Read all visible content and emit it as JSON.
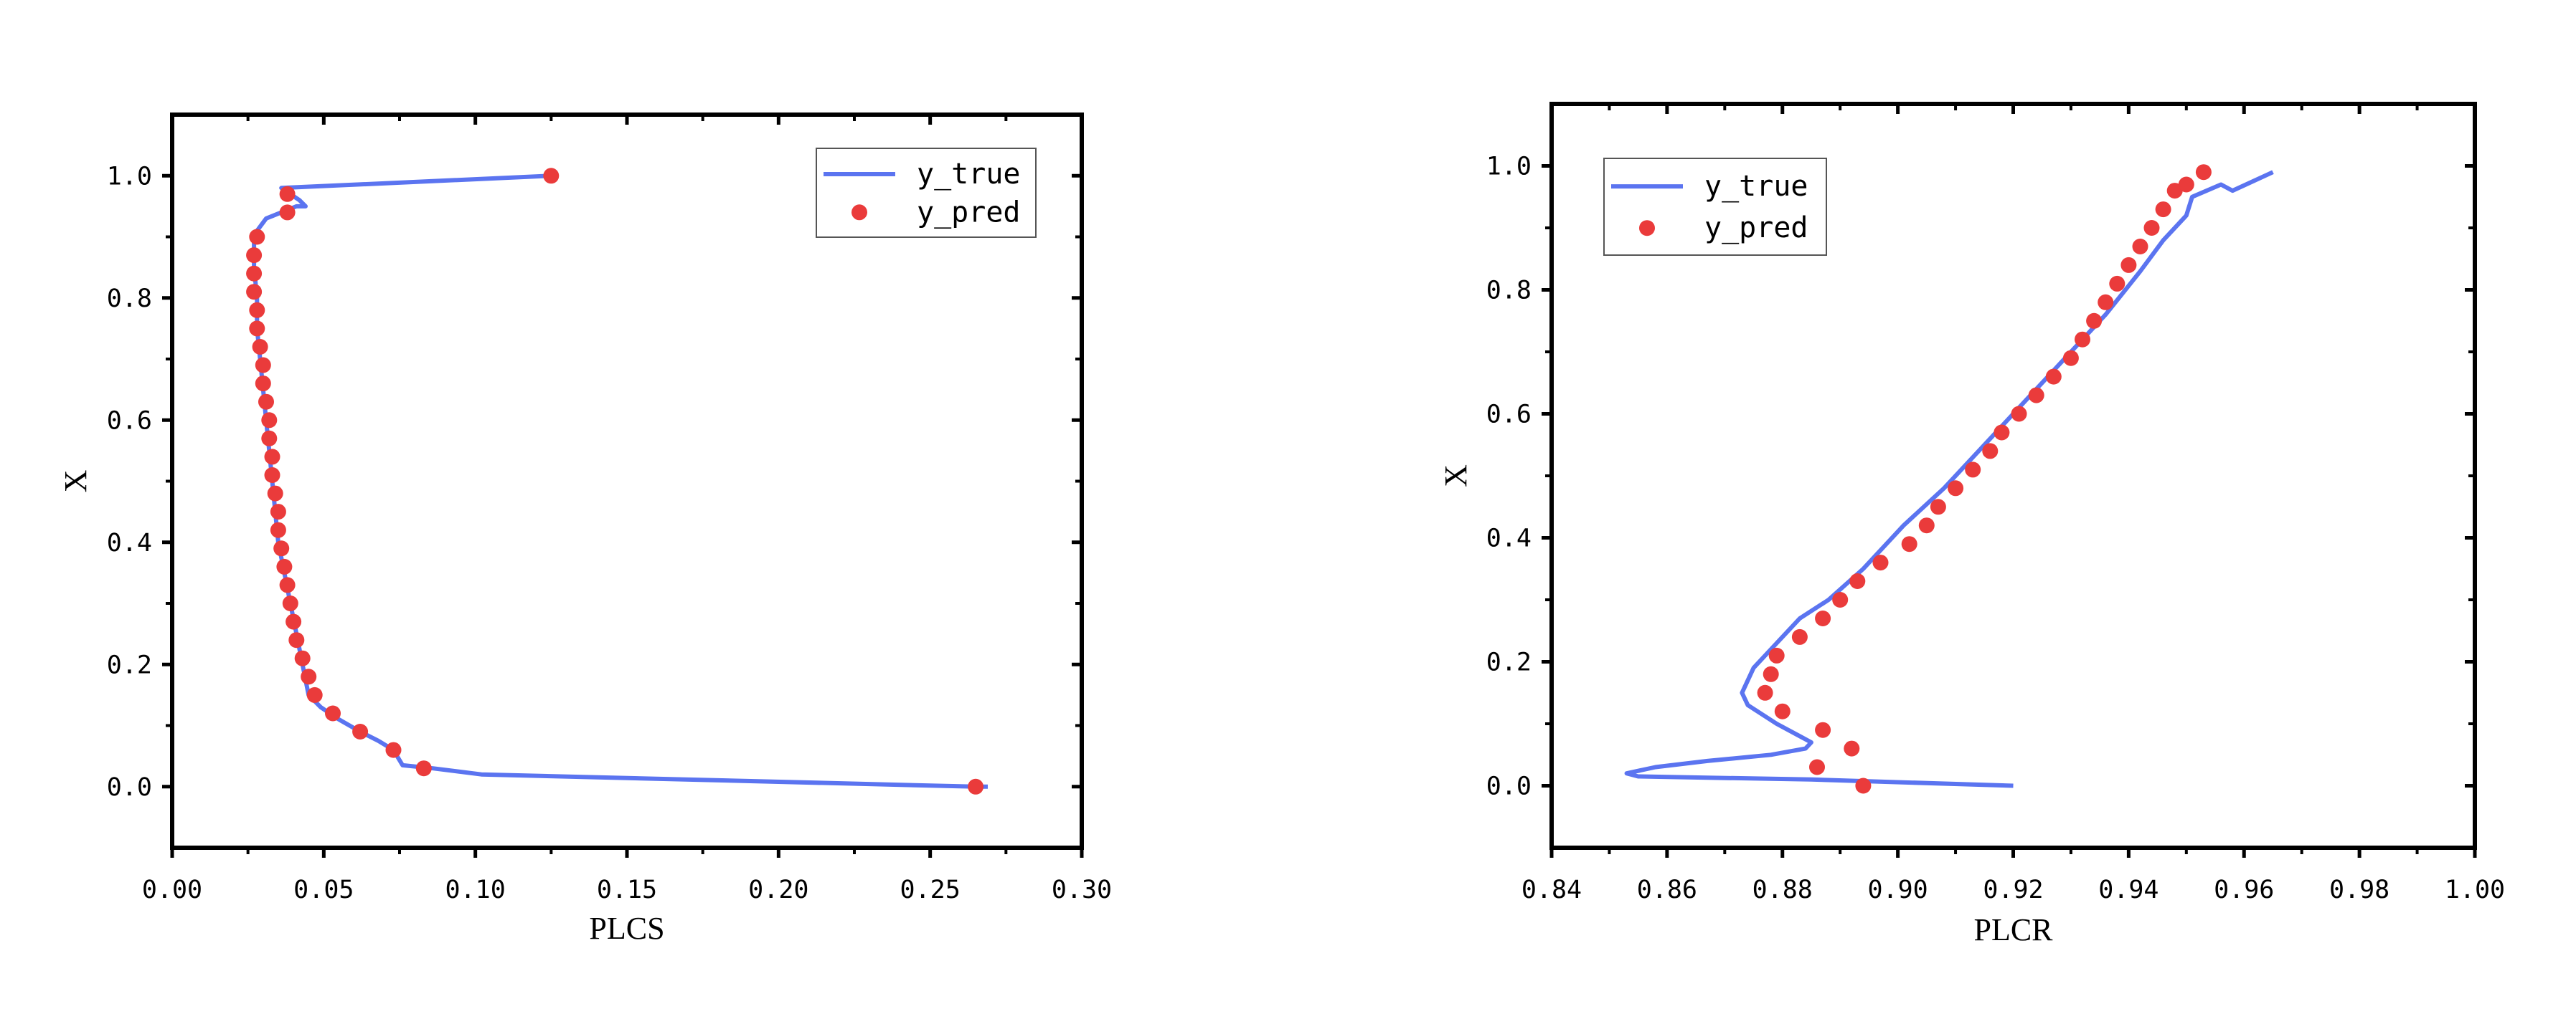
{
  "chart_data": [
    {
      "type": "line",
      "xlabel": "PLCS",
      "ylabel": "X",
      "xlim": [
        0.0,
        0.3
      ],
      "ylim": [
        -0.1,
        1.1
      ],
      "xticks": [
        0.0,
        0.05,
        0.1,
        0.15,
        0.2,
        0.25,
        0.3
      ],
      "xtick_labels": [
        "0.00",
        "0.05",
        "0.10",
        "0.15",
        "0.20",
        "0.25",
        "0.30"
      ],
      "yticks": [
        0.0,
        0.2,
        0.4,
        0.6,
        0.8,
        1.0
      ],
      "ytick_labels": [
        "0.0",
        "0.2",
        "0.4",
        "0.6",
        "0.8",
        "1.0"
      ],
      "legend": {
        "position": "top-right",
        "entries": [
          "y_true",
          "y_pred"
        ]
      },
      "grid": false,
      "colors": {
        "y_true": "#5b74f0",
        "y_pred": "#ea3b3b"
      },
      "series": [
        {
          "name": "y_true",
          "kind": "line",
          "x": [
            0.269,
            0.265,
            0.102,
            0.086,
            0.076,
            0.073,
            0.068,
            0.062,
            0.055,
            0.049,
            0.045,
            0.043,
            0.041,
            0.039,
            0.037,
            0.035,
            0.034,
            0.033,
            0.032,
            0.031,
            0.03,
            0.029,
            0.028,
            0.028,
            0.027,
            0.027,
            0.028,
            0.031,
            0.041,
            0.044,
            0.042,
            0.036,
            0.125
          ],
          "y": [
            0.0,
            0.0,
            0.02,
            0.03,
            0.035,
            0.06,
            0.075,
            0.09,
            0.11,
            0.13,
            0.15,
            0.2,
            0.25,
            0.3,
            0.35,
            0.4,
            0.45,
            0.5,
            0.55,
            0.6,
            0.65,
            0.7,
            0.75,
            0.8,
            0.85,
            0.89,
            0.91,
            0.93,
            0.95,
            0.95,
            0.96,
            0.98,
            1.0
          ]
        },
        {
          "name": "y_pred",
          "kind": "scatter",
          "x": [
            0.265,
            0.083,
            0.073,
            0.062,
            0.053,
            0.047,
            0.045,
            0.043,
            0.041,
            0.04,
            0.039,
            0.038,
            0.037,
            0.036,
            0.035,
            0.035,
            0.034,
            0.033,
            0.033,
            0.032,
            0.032,
            0.031,
            0.03,
            0.03,
            0.029,
            0.028,
            0.028,
            0.027,
            0.027,
            0.027,
            0.028,
            0.038,
            0.038,
            0.125
          ],
          "y": [
            0.0,
            0.03,
            0.06,
            0.09,
            0.12,
            0.15,
            0.18,
            0.21,
            0.24,
            0.27,
            0.3,
            0.33,
            0.36,
            0.39,
            0.42,
            0.45,
            0.48,
            0.51,
            0.54,
            0.57,
            0.6,
            0.63,
            0.66,
            0.69,
            0.72,
            0.75,
            0.78,
            0.81,
            0.84,
            0.87,
            0.9,
            0.94,
            0.97,
            1.0
          ]
        }
      ]
    },
    {
      "type": "line",
      "xlabel": "PLCR",
      "ylabel": "X",
      "xlim": [
        0.84,
        1.0
      ],
      "ylim": [
        -0.1,
        1.1
      ],
      "xticks": [
        0.84,
        0.86,
        0.88,
        0.9,
        0.92,
        0.94,
        0.96,
        0.98,
        1.0
      ],
      "xtick_labels": [
        "0.84",
        "0.86",
        "0.88",
        "0.90",
        "0.92",
        "0.94",
        "0.96",
        "0.98",
        "1.00"
      ],
      "yticks": [
        0.0,
        0.2,
        0.4,
        0.6,
        0.8,
        1.0
      ],
      "ytick_labels": [
        "0.0",
        "0.2",
        "0.4",
        "0.6",
        "0.8",
        "1.0"
      ],
      "legend": {
        "position": "top-left",
        "entries": [
          "y_true",
          "y_pred"
        ]
      },
      "grid": false,
      "colors": {
        "y_true": "#5b74f0",
        "y_pred": "#ea3b3b"
      },
      "series": [
        {
          "name": "y_true",
          "kind": "line",
          "x": [
            0.92,
            0.885,
            0.855,
            0.853,
            0.858,
            0.867,
            0.878,
            0.884,
            0.885,
            0.883,
            0.879,
            0.874,
            0.873,
            0.875,
            0.879,
            0.883,
            0.888,
            0.894,
            0.901,
            0.908,
            0.915,
            0.922,
            0.929,
            0.936,
            0.942,
            0.946,
            0.95,
            0.951,
            0.956,
            0.958,
            0.965
          ],
          "y": [
            0.0,
            0.01,
            0.015,
            0.02,
            0.03,
            0.04,
            0.05,
            0.06,
            0.07,
            0.08,
            0.1,
            0.13,
            0.15,
            0.19,
            0.23,
            0.27,
            0.3,
            0.35,
            0.42,
            0.48,
            0.55,
            0.62,
            0.69,
            0.76,
            0.83,
            0.88,
            0.92,
            0.95,
            0.97,
            0.96,
            0.99
          ]
        },
        {
          "name": "y_pred",
          "kind": "scatter",
          "x": [
            0.894,
            0.886,
            0.892,
            0.887,
            0.88,
            0.877,
            0.878,
            0.879,
            0.883,
            0.887,
            0.89,
            0.893,
            0.897,
            0.902,
            0.905,
            0.907,
            0.91,
            0.913,
            0.916,
            0.918,
            0.921,
            0.924,
            0.927,
            0.93,
            0.932,
            0.934,
            0.936,
            0.938,
            0.94,
            0.942,
            0.944,
            0.946,
            0.948,
            0.95,
            0.953
          ],
          "y": [
            0.0,
            0.03,
            0.06,
            0.09,
            0.12,
            0.15,
            0.18,
            0.21,
            0.24,
            0.27,
            0.3,
            0.33,
            0.36,
            0.39,
            0.42,
            0.45,
            0.48,
            0.51,
            0.54,
            0.57,
            0.6,
            0.63,
            0.66,
            0.69,
            0.72,
            0.75,
            0.78,
            0.81,
            0.84,
            0.87,
            0.9,
            0.93,
            0.96,
            0.97,
            0.99
          ]
        }
      ]
    }
  ]
}
